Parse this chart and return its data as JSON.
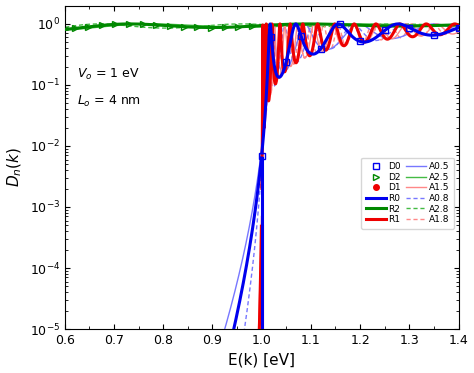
{
  "title": "",
  "xlabel": "E(k) [eV]",
  "ylabel": "$D_n(k)$",
  "xlim": [
    0.6,
    1.4
  ],
  "V0": 1.0,
  "L0_nm": 4.0,
  "annotation_V0": "$V_o$ = 1 eV",
  "annotation_L0": "$L_o$ = 4 nm",
  "colors": {
    "blue": "#0000EE",
    "green": "#008800",
    "red": "#EE0000",
    "lblue": "#7777FF",
    "lgreen": "#44BB44",
    "lred": "#FF8888"
  },
  "lw_thick": 2.2,
  "lw_thin": 1.0,
  "background": "#FFFFFF"
}
